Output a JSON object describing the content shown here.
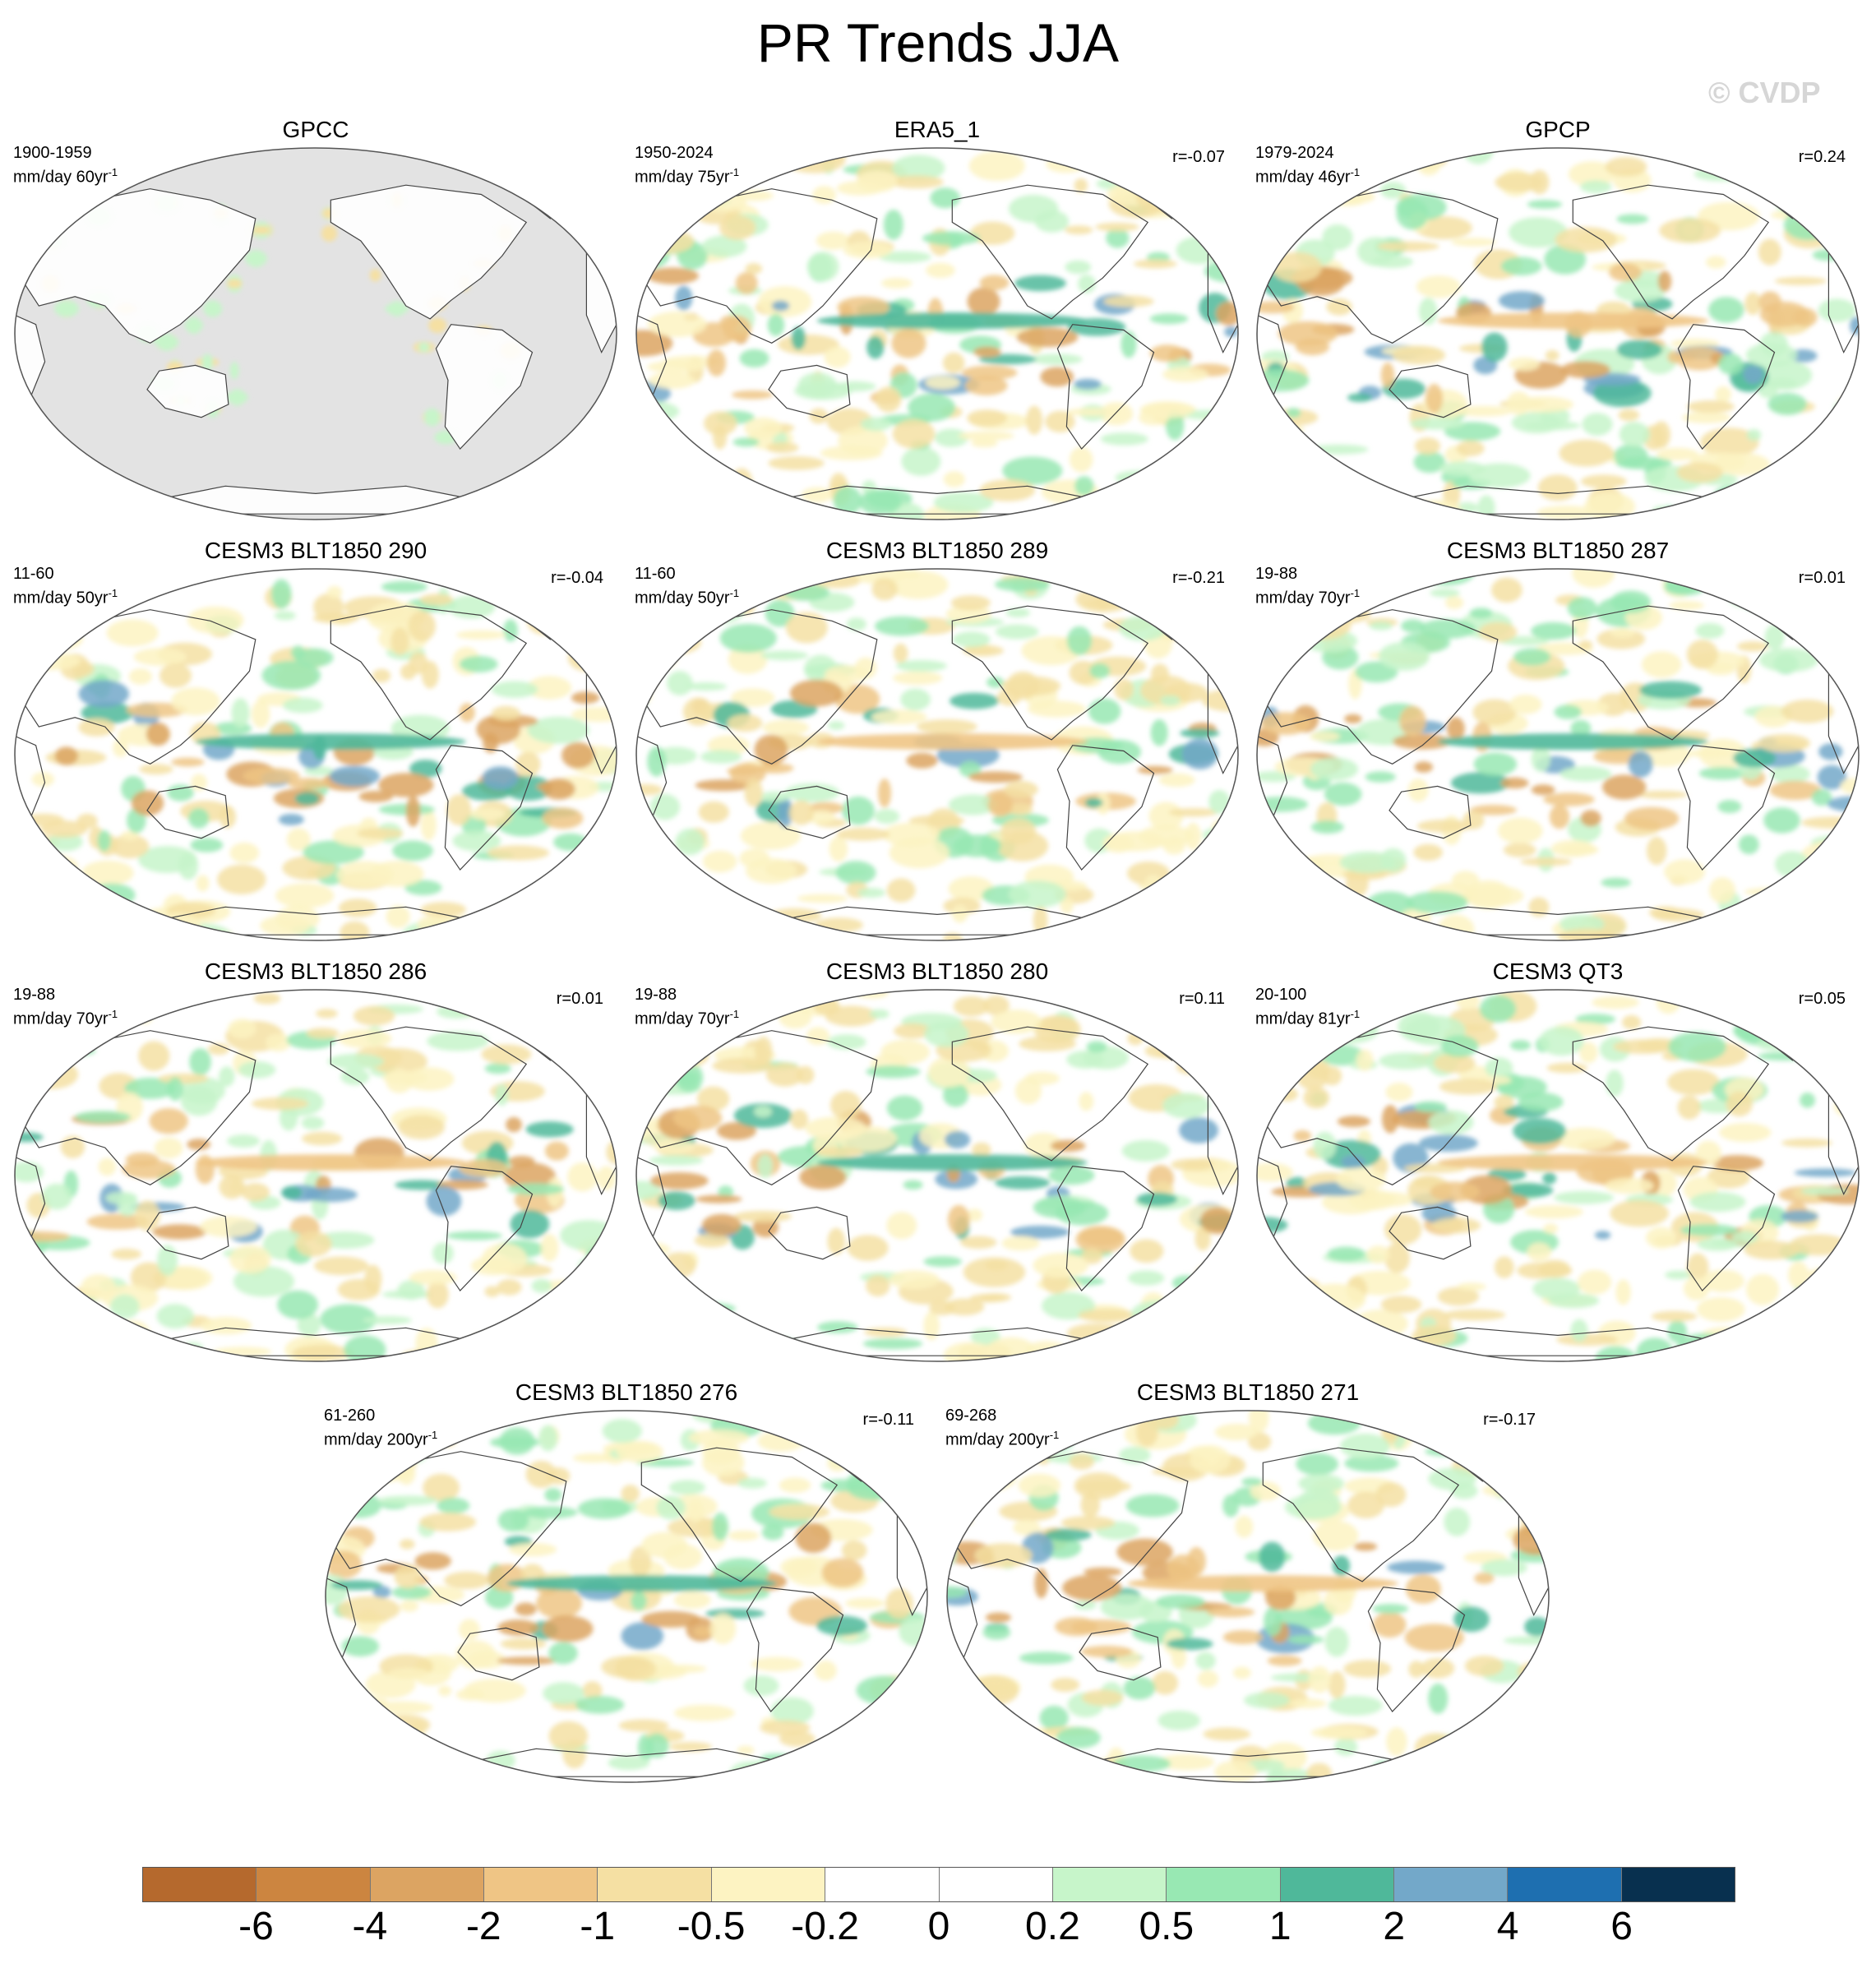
{
  "title": "PR Trends JJA",
  "watermark": "© CVDP",
  "panels": [
    {
      "title": "GPCC",
      "period": "1900-1959",
      "units": "mm/day 60yr",
      "units_sup": "-1",
      "r": "",
      "masked": true
    },
    {
      "title": "ERA5_1",
      "period": "1950-2024",
      "units": "mm/day 75yr",
      "units_sup": "-1",
      "r": "r=-0.07",
      "masked": false
    },
    {
      "title": "GPCP",
      "period": "1979-2024",
      "units": "mm/day 46yr",
      "units_sup": "-1",
      "r": "r=0.24",
      "masked": false
    },
    {
      "title": "CESM3 BLT1850 290",
      "period": "11-60",
      "units": "mm/day 50yr",
      "units_sup": "-1",
      "r": "r=-0.04",
      "masked": false
    },
    {
      "title": "CESM3 BLT1850 289",
      "period": "11-60",
      "units": "mm/day 50yr",
      "units_sup": "-1",
      "r": "r=-0.21",
      "masked": false
    },
    {
      "title": "CESM3 BLT1850 287",
      "period": "19-88",
      "units": "mm/day 70yr",
      "units_sup": "-1",
      "r": "r=0.01",
      "masked": false
    },
    {
      "title": "CESM3 BLT1850 286",
      "period": "19-88",
      "units": "mm/day 70yr",
      "units_sup": "-1",
      "r": "r=0.01",
      "masked": false
    },
    {
      "title": "CESM3 BLT1850 280",
      "period": "19-88",
      "units": "mm/day 70yr",
      "units_sup": "-1",
      "r": "r=0.11",
      "masked": false
    },
    {
      "title": "CESM3 QT3",
      "period": "20-100",
      "units": "mm/day 81yr",
      "units_sup": "-1",
      "r": "r=0.05",
      "masked": false
    },
    {
      "title": "CESM3 BLT1850 276",
      "period": "61-260",
      "units": "mm/day 200yr",
      "units_sup": "-1",
      "r": "r=-0.11",
      "masked": false
    },
    {
      "title": "CESM3 BLT1850 271",
      "period": "69-268",
      "units": "mm/day 200yr",
      "units_sup": "-1",
      "r": "r=-0.17",
      "masked": false
    }
  ],
  "colorbar": {
    "colors": [
      "#b5692d",
      "#cc8540",
      "#dca462",
      "#efc585",
      "#f5e0a3",
      "#fdf3c2",
      "#ffffff",
      "#ffffff",
      "#c7f5ca",
      "#98e8b3",
      "#4fb89a",
      "#73a8c9",
      "#1e6fb0",
      "#08304f"
    ],
    "labels": [
      "-6",
      "-4",
      "-2",
      "-1",
      "-0.5",
      "-0.2",
      "0",
      "0.2",
      "0.5",
      "1",
      "2",
      "4",
      "6"
    ]
  }
}
